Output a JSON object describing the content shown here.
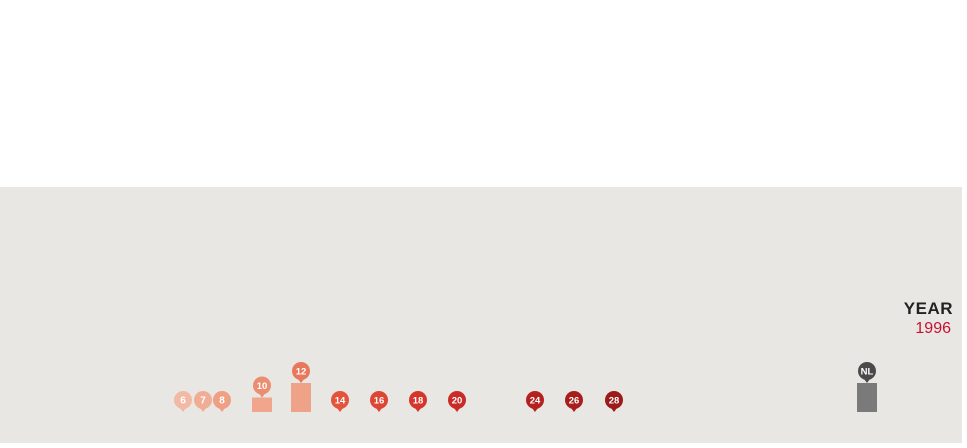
{
  "year": {
    "label": "YEAR",
    "value": "1996"
  },
  "chart_data": {
    "type": "bar",
    "title": "",
    "xlabel": "",
    "ylabel": "",
    "categories": [
      "6",
      "7",
      "8",
      "10",
      "12",
      "14",
      "16",
      "18",
      "20",
      "24",
      "26",
      "28",
      "NL"
    ],
    "values": [
      0,
      0,
      0,
      1,
      2,
      0,
      0,
      0,
      0,
      0,
      0,
      0,
      2
    ],
    "colors": [
      "#f2b9a4",
      "#f0ad95",
      "#ee9f84",
      "#eb8d70",
      "#e8785c",
      "#e2543d",
      "#dd4534",
      "#d5362c",
      "#c92b27",
      "#b3221f",
      "#a81e1c",
      "#9c1a1a",
      "#4a4a4a"
    ],
    "bar_colors": [
      "#f2b9a4",
      "#f0ad95",
      "#ee9f84",
      "#f0a58c",
      "#eea288",
      "#e2543d",
      "#dd4534",
      "#d5362c",
      "#c92b27",
      "#b3221f",
      "#a81e1c",
      "#9c1a1a",
      "#7a7a7a"
    ],
    "ylim": [
      0,
      2
    ],
    "grid": false
  }
}
